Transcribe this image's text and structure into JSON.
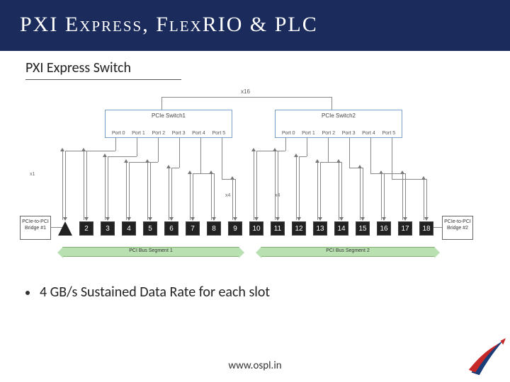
{
  "header": {
    "title": "PXI Express, FlexRIO & PLC"
  },
  "subtitle": "PXI Express Switch",
  "diagram": {
    "top_label": "x16",
    "switches": [
      {
        "label": "PCIe Switch1",
        "ports": [
          "Port 0",
          "Port 1",
          "Port 2",
          "Port 3",
          "Port 4",
          "Port 5"
        ]
      },
      {
        "label": "PCIe Switch2",
        "ports": [
          "Port 0",
          "Port 1",
          "Port 2",
          "Port 3",
          "Port 4",
          "Port 5"
        ]
      }
    ],
    "side_label": "x1",
    "slots": [
      "▲",
      "2",
      "3",
      "4",
      "5",
      "6",
      "7",
      "8",
      "9",
      "10",
      "11",
      "12",
      "13",
      "14",
      "15",
      "16",
      "17",
      "18"
    ],
    "bridges": [
      {
        "label": "PCIe-to-PCI Bridge #1"
      },
      {
        "label": "PCIe-to-PCI Bridge #2"
      }
    ],
    "buses": [
      {
        "label": "PCI Bus Segment 1"
      },
      {
        "label": "PCI Bus Segment 2"
      }
    ],
    "lane_marks": [
      "x4",
      "x4"
    ],
    "colors": {
      "switch_border": "#7aa0c8",
      "wire": "#888888",
      "slot_fill": "#222222",
      "bus_fill": "#b9e0b0",
      "bus_border": "#7fb070"
    }
  },
  "bullet": "4 GB/s Sustained Data Rate for each slot",
  "footer": {
    "url": "www.ospl.in"
  },
  "logo_colors": {
    "red": "#c62828",
    "blue": "#1a3e7a"
  }
}
